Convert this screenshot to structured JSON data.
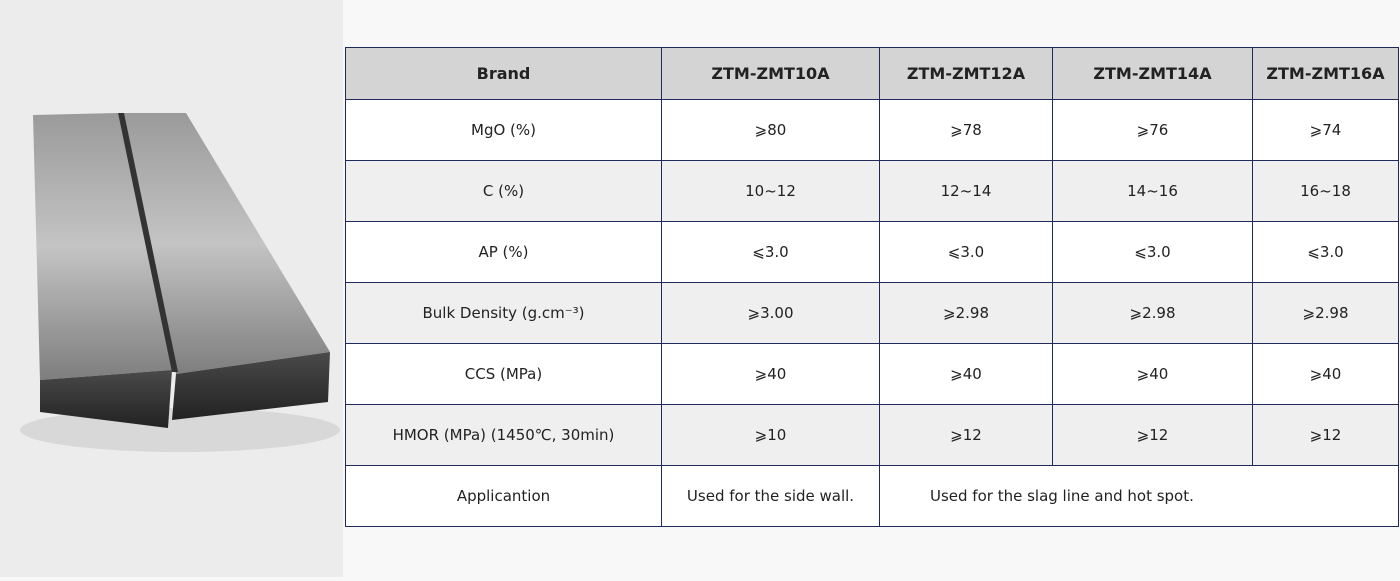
{
  "table": {
    "header": [
      "Brand",
      "ZTM-ZMT10A",
      "ZTM-ZMT12A",
      "ZTM-ZMT14A",
      "ZTM-ZMT16A"
    ],
    "rows": [
      [
        "MgO (%)",
        "⩾80",
        "⩾78",
        "⩾76",
        "⩾74"
      ],
      [
        "C (%)",
        "10~12",
        "12~14",
        "14~16",
        "16~18"
      ],
      [
        "AP (%)",
        "⩽3.0",
        "⩽3.0",
        "⩽3.0",
        "⩽3.0"
      ],
      [
        "Bulk Density (g.cm⁻³)",
        "⩾3.00",
        "⩾2.98",
        "⩾2.98",
        "⩾2.98"
      ],
      [
        "CCS (MPa)",
        "⩾40",
        "⩾40",
        "⩾40",
        "⩾40"
      ],
      [
        "HMOR (MPa) (1450℃, 30min)",
        "⩾10",
        "⩾12",
        "⩾12",
        "⩾12"
      ]
    ],
    "application": [
      "Applicantion",
      "Used for the side wall.",
      "Used for the slag line and hot spot."
    ]
  }
}
